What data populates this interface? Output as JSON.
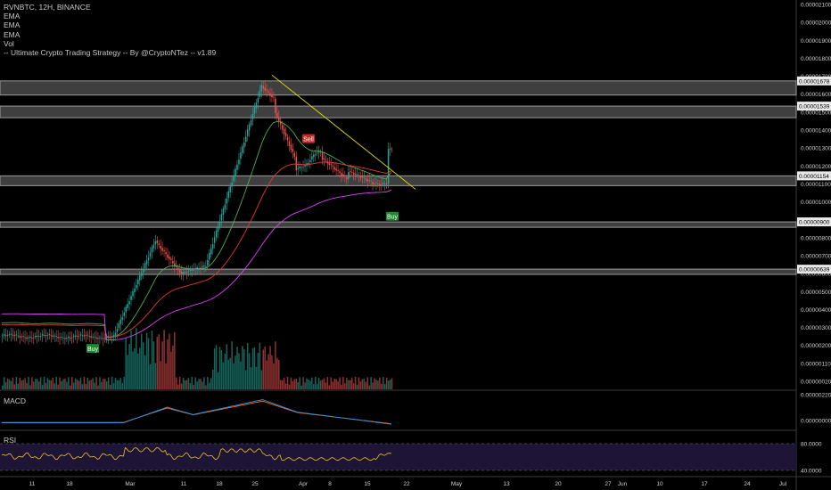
{
  "header": {
    "symbol_line": "RVNBTC, 12H, BINANCE",
    "indicators": [
      "EMA",
      "EMA",
      "EMA",
      "Vol",
      "-- Ultimate Crypto Trading Strategy -- By @CryptoNTez -- v1.89"
    ]
  },
  "panels": {
    "macd_label": "MACD",
    "rsi_label": "RSI"
  },
  "colors": {
    "up": "#26a69a",
    "down": "#ef5350",
    "ema_fast": "#4caf50",
    "ema_mid": "#e53935",
    "ema_slow": "#e040fb",
    "trendline": "#e6e600",
    "zone_band": "#4a4a4a",
    "macd_line": "#2196f3",
    "signal_line": "#ff6d00",
    "rsi_line": "#e6c229",
    "rsi_bg": "#1e1436"
  },
  "chart_data": {
    "type": "candlestick",
    "timeframe": "12H",
    "x_ticks": [
      "11",
      "18",
      "Mar",
      "11",
      "18",
      "25",
      "Apr",
      "8",
      "15",
      "22",
      "May",
      "13",
      "20",
      "27",
      "Jun",
      "10",
      "17",
      "24",
      "Jul"
    ],
    "y_ticks": [
      "0.00002100",
      "0.00002000",
      "0.00001900",
      "0.00001800",
      "0.00001700",
      "0.00001600",
      "0.00001500",
      "0.00001400",
      "0.00001300",
      "0.00001200",
      "0.00001100",
      "0.00001000",
      "0.00000900",
      "0.00000800",
      "0.00000700",
      "0.00000600",
      "0.00000500",
      "0.00000400",
      "0.00000300",
      "0.00000200",
      "0.00000110",
      "0.00000020"
    ],
    "price_labels": [
      "0.00001678",
      "0.00001539",
      "0.00001154",
      "0.00000900",
      "0.00000639"
    ],
    "horizontal_zones": [
      {
        "low": 1.6e-05,
        "high": 1.678e-05
      },
      {
        "low": 1.475e-05,
        "high": 1.539e-05
      },
      {
        "low": 1.1e-05,
        "high": 1.154e-05
      },
      {
        "low": 8.7e-06,
        "high": 9e-06
      },
      {
        "low": 6.1e-06,
        "high": 6.39e-06
      }
    ],
    "signals": [
      {
        "label": "Buy",
        "price": 2.7e-06
      },
      {
        "label": "Sell",
        "price": 1.31e-05
      },
      {
        "label": "Buy",
        "price": 1e-05
      }
    ],
    "ylim": [
      2e-07,
      2.1e-05
    ],
    "macd_ticks": [
      "0.00000220",
      "0.00000000"
    ],
    "rsi_ticks": [
      "80.0000",
      "40.0000"
    ]
  }
}
